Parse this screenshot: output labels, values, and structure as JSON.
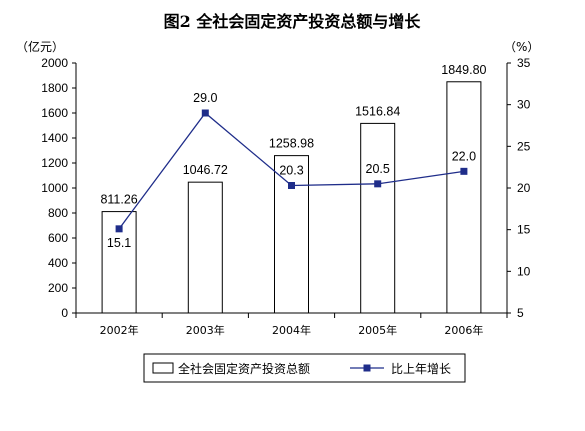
{
  "colors": {
    "bar_fill": "#ffffff",
    "bar_stroke": "#000000",
    "line": "#1f2d8a",
    "marker": "#1f2d8a",
    "axis": "#000000"
  },
  "chart_data": {
    "type": "bar+line",
    "title": "图2 全社会固定资产投资总额与增长",
    "left_unit": "（亿元）",
    "right_unit": "（%）",
    "categories": [
      "2002年",
      "2003年",
      "2004年",
      "2005年",
      "2006年"
    ],
    "left_axis": {
      "min": 0,
      "max": 2000,
      "step": 200
    },
    "right_axis": {
      "min": 5,
      "max": 35,
      "step": 5
    },
    "series": [
      {
        "name": "全社会固定资产投资总额",
        "type": "bar",
        "axis": "left",
        "values": [
          811.26,
          1046.72,
          1258.98,
          1516.84,
          1849.8
        ],
        "labels": [
          "811.26",
          "1046.72",
          "1258.98",
          "1516.84",
          "1849.80"
        ]
      },
      {
        "name": "比上年增长",
        "type": "line",
        "axis": "right",
        "values": [
          15.1,
          29.0,
          20.3,
          20.5,
          22.0
        ],
        "labels": [
          "15.1",
          "29.0",
          "20.3",
          "20.5",
          "22.0"
        ]
      }
    ],
    "grid": false,
    "legend_position": "bottom"
  }
}
